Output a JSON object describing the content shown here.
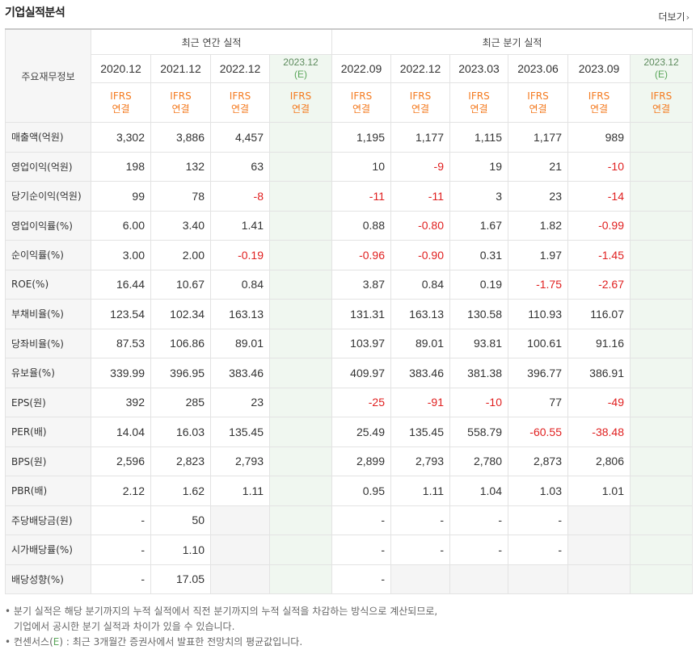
{
  "header": {
    "title": "기업실적분석",
    "more_label": "더보기",
    "more_arrow": "›"
  },
  "table": {
    "corner_label": "주요재무정보",
    "groups": {
      "annual": "최근 연간 실적",
      "quarterly": "최근 분기 실적"
    },
    "annual_periods": [
      {
        "date": "2020.12",
        "std1": "IFRS",
        "std2": "연결"
      },
      {
        "date": "2021.12",
        "std1": "IFRS",
        "std2": "연결"
      },
      {
        "date": "2022.12",
        "std1": "IFRS",
        "std2": "연결"
      },
      {
        "date": "2023.12",
        "est": "(E)",
        "std1": "IFRS",
        "std2": "연결"
      }
    ],
    "quarter_periods": [
      {
        "date": "2022.09",
        "std1": "IFRS",
        "std2": "연결"
      },
      {
        "date": "2022.12",
        "std1": "IFRS",
        "std2": "연결"
      },
      {
        "date": "2023.03",
        "std1": "IFRS",
        "std2": "연결"
      },
      {
        "date": "2023.06",
        "std1": "IFRS",
        "std2": "연결"
      },
      {
        "date": "2023.09",
        "std1": "IFRS",
        "std2": "연결"
      },
      {
        "date": "2023.12",
        "est": "(E)",
        "std1": "IFRS",
        "std2": "연결"
      }
    ],
    "rows": [
      {
        "label": "매출액(억원)",
        "values": [
          "3,302",
          "3,886",
          "4,457",
          "",
          "1,195",
          "1,177",
          "1,115",
          "1,177",
          "989",
          ""
        ]
      },
      {
        "label": "영업이익(억원)",
        "values": [
          "198",
          "132",
          "63",
          "",
          "10",
          "-9",
          "19",
          "21",
          "-10",
          ""
        ]
      },
      {
        "label": "당기순이익(억원)",
        "values": [
          "99",
          "78",
          "-8",
          "",
          "-11",
          "-11",
          "3",
          "23",
          "-14",
          ""
        ]
      },
      {
        "label": "영업이익률(%)",
        "values": [
          "6.00",
          "3.40",
          "1.41",
          "",
          "0.88",
          "-0.80",
          "1.67",
          "1.82",
          "-0.99",
          ""
        ]
      },
      {
        "label": "순이익률(%)",
        "values": [
          "3.00",
          "2.00",
          "-0.19",
          "",
          "-0.96",
          "-0.90",
          "0.31",
          "1.97",
          "-1.45",
          ""
        ]
      },
      {
        "label": "ROE(%)",
        "values": [
          "16.44",
          "10.67",
          "0.84",
          "",
          "3.87",
          "0.84",
          "0.19",
          "-1.75",
          "-2.67",
          ""
        ]
      },
      {
        "label": "부채비율(%)",
        "values": [
          "123.54",
          "102.34",
          "163.13",
          "",
          "131.31",
          "163.13",
          "130.58",
          "110.93",
          "116.07",
          ""
        ]
      },
      {
        "label": "당좌비율(%)",
        "values": [
          "87.53",
          "106.86",
          "89.01",
          "",
          "103.97",
          "89.01",
          "93.81",
          "100.61",
          "91.16",
          ""
        ]
      },
      {
        "label": "유보율(%)",
        "values": [
          "339.99",
          "396.95",
          "383.46",
          "",
          "409.97",
          "383.46",
          "381.38",
          "396.77",
          "386.91",
          ""
        ]
      },
      {
        "label": "EPS(원)",
        "values": [
          "392",
          "285",
          "23",
          "",
          "-25",
          "-91",
          "-10",
          "77",
          "-49",
          ""
        ]
      },
      {
        "label": "PER(배)",
        "values": [
          "14.04",
          "16.03",
          "135.45",
          "",
          "25.49",
          "135.45",
          "558.79",
          "-60.55",
          "-38.48",
          ""
        ]
      },
      {
        "label": "BPS(원)",
        "values": [
          "2,596",
          "2,823",
          "2,793",
          "",
          "2,899",
          "2,793",
          "2,780",
          "2,873",
          "2,806",
          ""
        ]
      },
      {
        "label": "PBR(배)",
        "values": [
          "2.12",
          "1.62",
          "1.11",
          "",
          "0.95",
          "1.11",
          "1.04",
          "1.03",
          "1.01",
          ""
        ]
      },
      {
        "label": "주당배당금(원)",
        "values": [
          "-",
          "50",
          "",
          "",
          "-",
          "-",
          "-",
          "-",
          "",
          ""
        ]
      },
      {
        "label": "시가배당률(%)",
        "values": [
          "-",
          "1.10",
          "",
          "",
          "-",
          "-",
          "-",
          "-",
          "",
          ""
        ]
      },
      {
        "label": "배당성향(%)",
        "values": [
          "-",
          "17.05",
          "",
          "",
          "-",
          "",
          "",
          "",
          "",
          ""
        ]
      }
    ]
  },
  "notes": {
    "line1": "분기 실적은 해당 분기까지의 누적 실적에서 직전 분기까지의 누적 실적을 차감하는 방식으로 계산되므로,",
    "line2": "기업에서 공시한 분기 실적과 차이가 있을 수 있습니다.",
    "line3_pre": "컨센서스(",
    "line3_e": "E",
    "line3_post": ") : 최근 3개월간 증권사에서 발표한 전망치의 평균값입니다.",
    "bullet": "•"
  },
  "colors": {
    "negative": "#e01f1f",
    "ifrs": "#f47a1f",
    "estimate_bg": "#f0f7f0",
    "estimate_text": "#5aa65a"
  }
}
